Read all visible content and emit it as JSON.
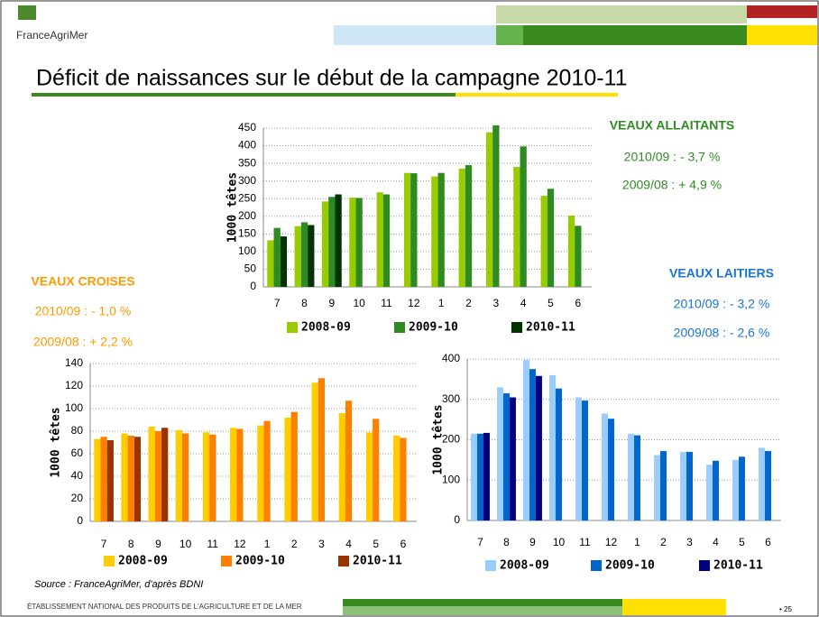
{
  "logo": "FranceAgriMer",
  "title": "Déficit de naissances sur le début de la campagne 2010-11",
  "source": "Source : FranceAgriMer, d'après BDNI",
  "footer": "ÉTABLISSEMENT NATIONAL DES PRODUITS DE L'AGRICULTURE ET DE LA MER",
  "page_number": "• 25",
  "chart_data": [
    {
      "type": "bar",
      "title": "VEAUX ALLAITANTS",
      "annotations": [
        "2010/09 : - 3,7 %",
        "2009/08 : + 4,9 %"
      ],
      "ylabel": "1000 têtes",
      "categories": [
        "7",
        "8",
        "9",
        "10",
        "11",
        "12",
        "1",
        "2",
        "3",
        "4",
        "5",
        "6"
      ],
      "ylim": [
        0,
        450
      ],
      "yticks": [
        0,
        50,
        100,
        150,
        200,
        250,
        300,
        350,
        400,
        450
      ],
      "grid": true,
      "series": [
        {
          "name": "2008-09",
          "color": "#99cc00",
          "values": [
            132,
            172,
            242,
            253,
            268,
            323,
            313,
            335,
            438,
            340,
            258,
            202
          ]
        },
        {
          "name": "2009-10",
          "color": "#2e8b22",
          "values": [
            167,
            183,
            255,
            252,
            262,
            322,
            323,
            345,
            458,
            398,
            278,
            173
          ]
        },
        {
          "name": "2010-11",
          "color": "#003300",
          "values": [
            143,
            175,
            262,
            null,
            null,
            null,
            null,
            null,
            null,
            null,
            null,
            null
          ]
        }
      ]
    },
    {
      "type": "bar",
      "title": "VEAUX CROISES",
      "annotations": [
        "2010/09 : - 1,0 %",
        "2009/08 : + 2,2 %"
      ],
      "ylabel": "1000 têtes",
      "categories": [
        "7",
        "8",
        "9",
        "10",
        "11",
        "12",
        "1",
        "2",
        "3",
        "4",
        "5",
        "6"
      ],
      "ylim": [
        0,
        140
      ],
      "yticks": [
        0,
        20,
        40,
        60,
        80,
        100,
        120,
        140
      ],
      "grid": true,
      "series": [
        {
          "name": "2008-09",
          "color": "#ffcc00",
          "values": [
            73,
            78,
            84,
            81,
            79,
            83,
            85,
            92,
            123,
            96,
            79,
            76
          ]
        },
        {
          "name": "2009-10",
          "color": "#ff8000",
          "values": [
            75,
            76,
            80,
            78,
            77,
            82,
            89,
            97,
            127,
            107,
            91,
            74
          ]
        },
        {
          "name": "2010-11",
          "color": "#993300",
          "values": [
            72,
            75,
            83,
            null,
            null,
            null,
            null,
            null,
            null,
            null,
            null,
            null
          ]
        }
      ]
    },
    {
      "type": "bar",
      "title": "VEAUX LAITIERS",
      "annotations": [
        "2010/09 : - 3,2 %",
        "2009/08 : - 2,6 %"
      ],
      "ylabel": "1000 têtes",
      "categories": [
        "7",
        "8",
        "9",
        "10",
        "11",
        "12",
        "1",
        "2",
        "3",
        "4",
        "5",
        "6"
      ],
      "ylim": [
        0,
        400
      ],
      "yticks": [
        0,
        100,
        200,
        300,
        400
      ],
      "grid": true,
      "series": [
        {
          "name": "2008-09",
          "color": "#99ccff",
          "values": [
            215,
            330,
            398,
            360,
            305,
            265,
            215,
            162,
            170,
            138,
            150,
            180
          ]
        },
        {
          "name": "2009-10",
          "color": "#0066cc",
          "values": [
            215,
            315,
            375,
            327,
            297,
            252,
            211,
            172,
            170,
            148,
            158,
            172
          ]
        },
        {
          "name": "2010-11",
          "color": "#000080",
          "values": [
            217,
            305,
            358,
            null,
            null,
            null,
            null,
            null,
            null,
            null,
            null,
            null
          ]
        }
      ]
    }
  ]
}
